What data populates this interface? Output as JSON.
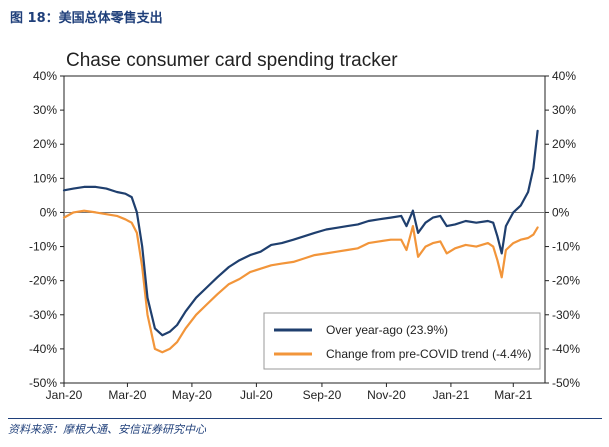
{
  "figure": {
    "caption": "图 18：美国总体零售支出",
    "source": "资料来源：摩根大通、安信证券研究中心"
  },
  "chart_data": {
    "type": "line",
    "title": "Chase consumer card spending tracker",
    "xlabel": "",
    "ylabel": "",
    "x_range": [
      "2020-01-01",
      "2021-03-31"
    ],
    "x_ticks": [
      "Jan-20",
      "Mar-20",
      "May-20",
      "Jul-20",
      "Sep-20",
      "Nov-20",
      "Jan-21",
      "Mar-21"
    ],
    "ylim": [
      -50,
      40
    ],
    "y_ticks": [
      "40%",
      "30%",
      "20%",
      "10%",
      "0%",
      "-10%",
      "-20%",
      "-30%",
      "-40%",
      "-50%"
    ],
    "right_axis_mirrored": true,
    "zero_line": true,
    "grid": false,
    "legend_position": "bottom-right",
    "series": [
      {
        "name": "Over year-ago (23.9%)",
        "color": "#1f3f6e",
        "points": [
          [
            "2020-01-01",
            6.5
          ],
          [
            "2020-01-10",
            7.0
          ],
          [
            "2020-01-20",
            7.5
          ],
          [
            "2020-01-31",
            7.5
          ],
          [
            "2020-02-10",
            7.0
          ],
          [
            "2020-02-20",
            6.0
          ],
          [
            "2020-02-28",
            5.5
          ],
          [
            "2020-03-05",
            4.5
          ],
          [
            "2020-03-10",
            0.0
          ],
          [
            "2020-03-15",
            -10.0
          ],
          [
            "2020-03-20",
            -25.0
          ],
          [
            "2020-03-27",
            -34.0
          ],
          [
            "2020-04-03",
            -36.0
          ],
          [
            "2020-04-10",
            -35.0
          ],
          [
            "2020-04-17",
            -33.0
          ],
          [
            "2020-04-25",
            -29.0
          ],
          [
            "2020-05-05",
            -25.0
          ],
          [
            "2020-05-15",
            -22.0
          ],
          [
            "2020-05-25",
            -19.0
          ],
          [
            "2020-06-05",
            -16.0
          ],
          [
            "2020-06-15",
            -14.0
          ],
          [
            "2020-06-25",
            -12.5
          ],
          [
            "2020-07-05",
            -11.5
          ],
          [
            "2020-07-15",
            -9.5
          ],
          [
            "2020-07-25",
            -9.0
          ],
          [
            "2020-08-05",
            -8.0
          ],
          [
            "2020-08-15",
            -7.0
          ],
          [
            "2020-08-25",
            -6.0
          ],
          [
            "2020-09-05",
            -5.0
          ],
          [
            "2020-09-15",
            -4.5
          ],
          [
            "2020-09-25",
            -4.0
          ],
          [
            "2020-10-05",
            -3.5
          ],
          [
            "2020-10-15",
            -2.5
          ],
          [
            "2020-10-25",
            -2.0
          ],
          [
            "2020-11-05",
            -1.5
          ],
          [
            "2020-11-15",
            -1.0
          ],
          [
            "2020-11-20",
            -4.0
          ],
          [
            "2020-11-26",
            0.5
          ],
          [
            "2020-12-01",
            -6.0
          ],
          [
            "2020-12-08",
            -3.0
          ],
          [
            "2020-12-15",
            -1.5
          ],
          [
            "2020-12-22",
            -1.0
          ],
          [
            "2020-12-28",
            -4.0
          ],
          [
            "2021-01-05",
            -3.5
          ],
          [
            "2021-01-15",
            -2.5
          ],
          [
            "2021-01-25",
            -3.0
          ],
          [
            "2021-02-05",
            -2.5
          ],
          [
            "2021-02-10",
            -3.0
          ],
          [
            "2021-02-14",
            -7.0
          ],
          [
            "2021-02-18",
            -12.0
          ],
          [
            "2021-02-22",
            -4.0
          ],
          [
            "2021-03-01",
            0.0
          ],
          [
            "2021-03-08",
            2.0
          ],
          [
            "2021-03-15",
            6.0
          ],
          [
            "2021-03-20",
            13.0
          ],
          [
            "2021-03-24",
            23.9
          ]
        ]
      },
      {
        "name": "Change from pre-COVID trend (-4.4%)",
        "color": "#f2953a",
        "points": [
          [
            "2020-01-01",
            -1.5
          ],
          [
            "2020-01-10",
            0.0
          ],
          [
            "2020-01-20",
            0.5
          ],
          [
            "2020-01-31",
            0.0
          ],
          [
            "2020-02-10",
            -0.5
          ],
          [
            "2020-02-20",
            -1.0
          ],
          [
            "2020-02-28",
            -2.0
          ],
          [
            "2020-03-05",
            -3.0
          ],
          [
            "2020-03-10",
            -6.0
          ],
          [
            "2020-03-15",
            -16.0
          ],
          [
            "2020-03-20",
            -30.0
          ],
          [
            "2020-03-27",
            -40.0
          ],
          [
            "2020-04-03",
            -41.0
          ],
          [
            "2020-04-10",
            -40.0
          ],
          [
            "2020-04-17",
            -38.0
          ],
          [
            "2020-04-25",
            -34.0
          ],
          [
            "2020-05-05",
            -30.0
          ],
          [
            "2020-05-15",
            -27.0
          ],
          [
            "2020-05-25",
            -24.0
          ],
          [
            "2020-06-05",
            -21.0
          ],
          [
            "2020-06-15",
            -19.5
          ],
          [
            "2020-06-25",
            -17.5
          ],
          [
            "2020-07-05",
            -16.5
          ],
          [
            "2020-07-15",
            -15.5
          ],
          [
            "2020-07-25",
            -15.0
          ],
          [
            "2020-08-05",
            -14.5
          ],
          [
            "2020-08-15",
            -13.5
          ],
          [
            "2020-08-25",
            -12.5
          ],
          [
            "2020-09-05",
            -12.0
          ],
          [
            "2020-09-15",
            -11.5
          ],
          [
            "2020-09-25",
            -11.0
          ],
          [
            "2020-10-05",
            -10.5
          ],
          [
            "2020-10-15",
            -9.0
          ],
          [
            "2020-10-25",
            -8.5
          ],
          [
            "2020-11-05",
            -8.0
          ],
          [
            "2020-11-15",
            -8.0
          ],
          [
            "2020-11-20",
            -11.0
          ],
          [
            "2020-11-26",
            -4.0
          ],
          [
            "2020-12-01",
            -13.0
          ],
          [
            "2020-12-08",
            -10.0
          ],
          [
            "2020-12-15",
            -9.0
          ],
          [
            "2020-12-22",
            -8.5
          ],
          [
            "2020-12-28",
            -12.0
          ],
          [
            "2021-01-05",
            -10.5
          ],
          [
            "2021-01-15",
            -9.5
          ],
          [
            "2021-01-25",
            -10.0
          ],
          [
            "2021-02-05",
            -9.0
          ],
          [
            "2021-02-10",
            -10.0
          ],
          [
            "2021-02-14",
            -14.0
          ],
          [
            "2021-02-18",
            -19.0
          ],
          [
            "2021-02-22",
            -11.0
          ],
          [
            "2021-03-01",
            -9.0
          ],
          [
            "2021-03-08",
            -8.0
          ],
          [
            "2021-03-15",
            -7.5
          ],
          [
            "2021-03-20",
            -6.5
          ],
          [
            "2021-03-24",
            -4.4
          ]
        ]
      }
    ]
  }
}
